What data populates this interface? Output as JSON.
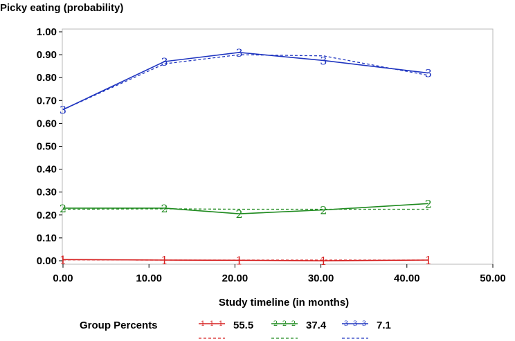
{
  "chart_data": {
    "type": "line",
    "title": "Picky eating (probability)",
    "xlabel": "Study timeline (in months)",
    "ylabel": "Picky eating (probability)",
    "xlim": [
      0,
      50
    ],
    "ylim": [
      0,
      1
    ],
    "x_ticks": [
      "0.00",
      "10.00",
      "20.00",
      "30.00",
      "40.00",
      "50.00"
    ],
    "y_ticks": [
      "0.00",
      "0.10",
      "0.20",
      "0.30",
      "0.40",
      "0.50",
      "0.60",
      "0.70",
      "0.80",
      "0.90",
      "1.00"
    ],
    "legend_title": "Group Percents",
    "series": [
      {
        "name": "1",
        "percent": "55.5",
        "color": "#d62020",
        "x": [
          0,
          11.8,
          20.5,
          30.3,
          42.5
        ],
        "observed": [
          0.005,
          0.003,
          0.002,
          0.0,
          0.003
        ],
        "predicted": [
          0.004,
          0.003,
          0.003,
          0.003,
          0.003
        ]
      },
      {
        "name": "2",
        "percent": "37.4",
        "color": "#1e8a1e",
        "x": [
          0,
          11.8,
          20.5,
          30.3,
          42.5
        ],
        "observed": [
          0.23,
          0.23,
          0.205,
          0.222,
          0.25
        ],
        "predicted": [
          0.225,
          0.227,
          0.225,
          0.225,
          0.225
        ]
      },
      {
        "name": "3",
        "percent": "7.1",
        "color": "#1f35c0",
        "x": [
          0,
          11.8,
          20.5,
          30.3,
          42.5
        ],
        "observed": [
          0.66,
          0.87,
          0.91,
          0.875,
          0.82
        ],
        "predicted": [
          0.66,
          0.86,
          0.9,
          0.895,
          0.81
        ]
      }
    ]
  }
}
